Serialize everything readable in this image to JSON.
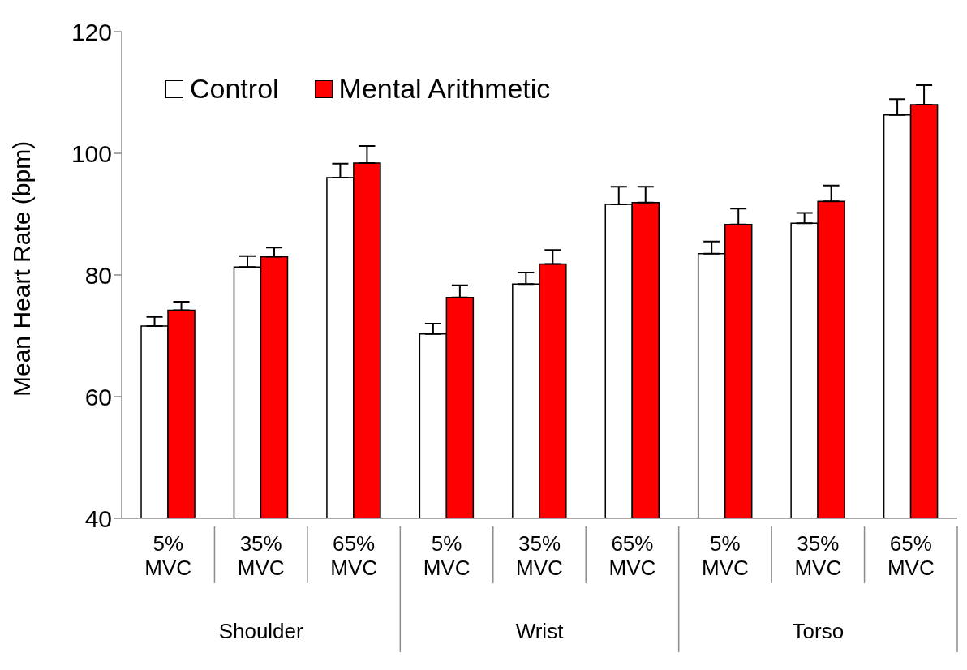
{
  "chart_data": {
    "type": "bar",
    "ylabel": "Mean Heart Rate (bpm)",
    "categories": [
      "5% MVC",
      "35% MVC",
      "65% MVC",
      "5% MVC",
      "35% MVC",
      "65% MVC",
      "5% MVC",
      "35% MVC",
      "65% MVC"
    ],
    "series": [
      {
        "name": "Control",
        "color": "#ffffff",
        "values": [
          71.6,
          81.3,
          96.0,
          70.3,
          78.5,
          91.6,
          83.5,
          88.5,
          106.3
        ],
        "errors": [
          1.5,
          1.8,
          2.3,
          1.7,
          1.9,
          2.9,
          2.0,
          1.7,
          2.6
        ]
      },
      {
        "name": "Mental Arithmetic",
        "color": "#ff0000",
        "values": [
          74.2,
          83.0,
          98.4,
          76.3,
          81.8,
          91.9,
          88.3,
          92.1,
          108.0
        ],
        "errors": [
          1.4,
          1.5,
          2.8,
          2.0,
          2.3,
          2.6,
          2.6,
          2.6,
          3.2
        ]
      }
    ],
    "annotations": [
      "Shoulder",
      "Wrist",
      "Torso"
    ],
    "ylim": [
      40,
      120
    ],
    "yticks": [
      40,
      60,
      80,
      100,
      120
    ],
    "grid": false,
    "legend": "top left"
  }
}
